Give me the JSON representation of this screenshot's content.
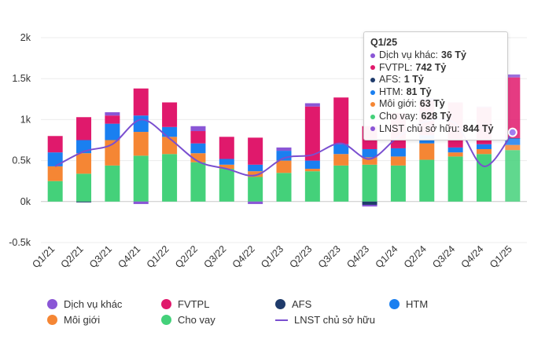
{
  "chart_data": {
    "type": "bar",
    "stacked": true,
    "categories": [
      "Q1/21",
      "Q2/21",
      "Q3/21",
      "Q4/21",
      "Q1/22",
      "Q2/22",
      "Q3/22",
      "Q4/22",
      "Q1/23",
      "Q2/23",
      "Q3/23",
      "Q4/23",
      "Q1/24",
      "Q2/24",
      "Q3/24",
      "Q4/24",
      "Q1/25"
    ],
    "y_ticks": [
      "2k",
      "1.5k",
      "1k",
      "0.5k",
      "0k",
      "-0.5k"
    ],
    "ylim": [
      -500,
      2000
    ],
    "series": [
      {
        "name": "Dịch vụ khác",
        "color": "#8a56d6",
        "values": [
          0,
          0,
          40,
          -30,
          0,
          60,
          0,
          -30,
          40,
          40,
          0,
          -20,
          0,
          30,
          0,
          10,
          36
        ]
      },
      {
        "name": "FVTPL",
        "color": "#e0196c",
        "values": [
          200,
          280,
          100,
          330,
          300,
          150,
          270,
          330,
          0,
          660,
          570,
          280,
          430,
          420,
          550,
          450,
          742
        ]
      },
      {
        "name": "AFS",
        "color": "#1f3b6b",
        "values": [
          0,
          -10,
          0,
          0,
          0,
          0,
          0,
          0,
          0,
          0,
          0,
          -40,
          0,
          0,
          0,
          0,
          1
        ]
      },
      {
        "name": "HTM",
        "color": "#1a7ff0",
        "values": [
          170,
          160,
          200,
          200,
          120,
          120,
          70,
          80,
          120,
          100,
          120,
          100,
          100,
          100,
          60,
          60,
          81
        ]
      },
      {
        "name": "Môi giới",
        "color": "#f58634",
        "values": [
          180,
          250,
          310,
          290,
          210,
          110,
          50,
          70,
          150,
          30,
          140,
          90,
          110,
          200,
          50,
          60,
          63
        ]
      },
      {
        "name": "Cho vay",
        "color": "#44d17a",
        "values": [
          250,
          340,
          440,
          560,
          580,
          480,
          400,
          300,
          350,
          370,
          440,
          450,
          440,
          510,
          550,
          580,
          628
        ]
      }
    ],
    "line": {
      "name": "LNST chủ sở hữu",
      "color": "#7a4fd0",
      "values": [
        430,
        610,
        700,
        1000,
        770,
        490,
        400,
        320,
        530,
        570,
        710,
        520,
        790,
        980,
        950,
        430,
        844
      ]
    },
    "tooltip": {
      "title": "Q1/25",
      "rows": [
        {
          "label": "Dịch vụ khác:",
          "value": "36 Tỷ",
          "color": "#8a56d6"
        },
        {
          "label": "FVTPL:",
          "value": "742 Tỷ",
          "color": "#e0196c"
        },
        {
          "label": "AFS:",
          "value": "1 Tỷ",
          "color": "#1f3b6b"
        },
        {
          "label": "HTM:",
          "value": "81 Tỷ",
          "color": "#1a7ff0"
        },
        {
          "label": "Môi giới:",
          "value": "63 Tỷ",
          "color": "#f58634"
        },
        {
          "label": "Cho vay:",
          "value": "628 Tỷ",
          "color": "#44d17a"
        },
        {
          "label": "LNST chủ sở hữu:",
          "value": "844 Tỷ",
          "color": "#8a56d6"
        }
      ]
    },
    "legend": [
      {
        "name": "Dịch vụ khác",
        "color": "#8a56d6",
        "kind": "dot"
      },
      {
        "name": "FVTPL",
        "color": "#e0196c",
        "kind": "dot"
      },
      {
        "name": "AFS",
        "color": "#1f3b6b",
        "kind": "dot"
      },
      {
        "name": "HTM",
        "color": "#1a7ff0",
        "kind": "dot"
      },
      {
        "name": "Môi giới",
        "color": "#f58634",
        "kind": "dot"
      },
      {
        "name": "Cho vay",
        "color": "#44d17a",
        "kind": "dot"
      },
      {
        "name": "LNST chủ sở hữu",
        "color": "#7a4fd0",
        "kind": "line"
      }
    ]
  }
}
